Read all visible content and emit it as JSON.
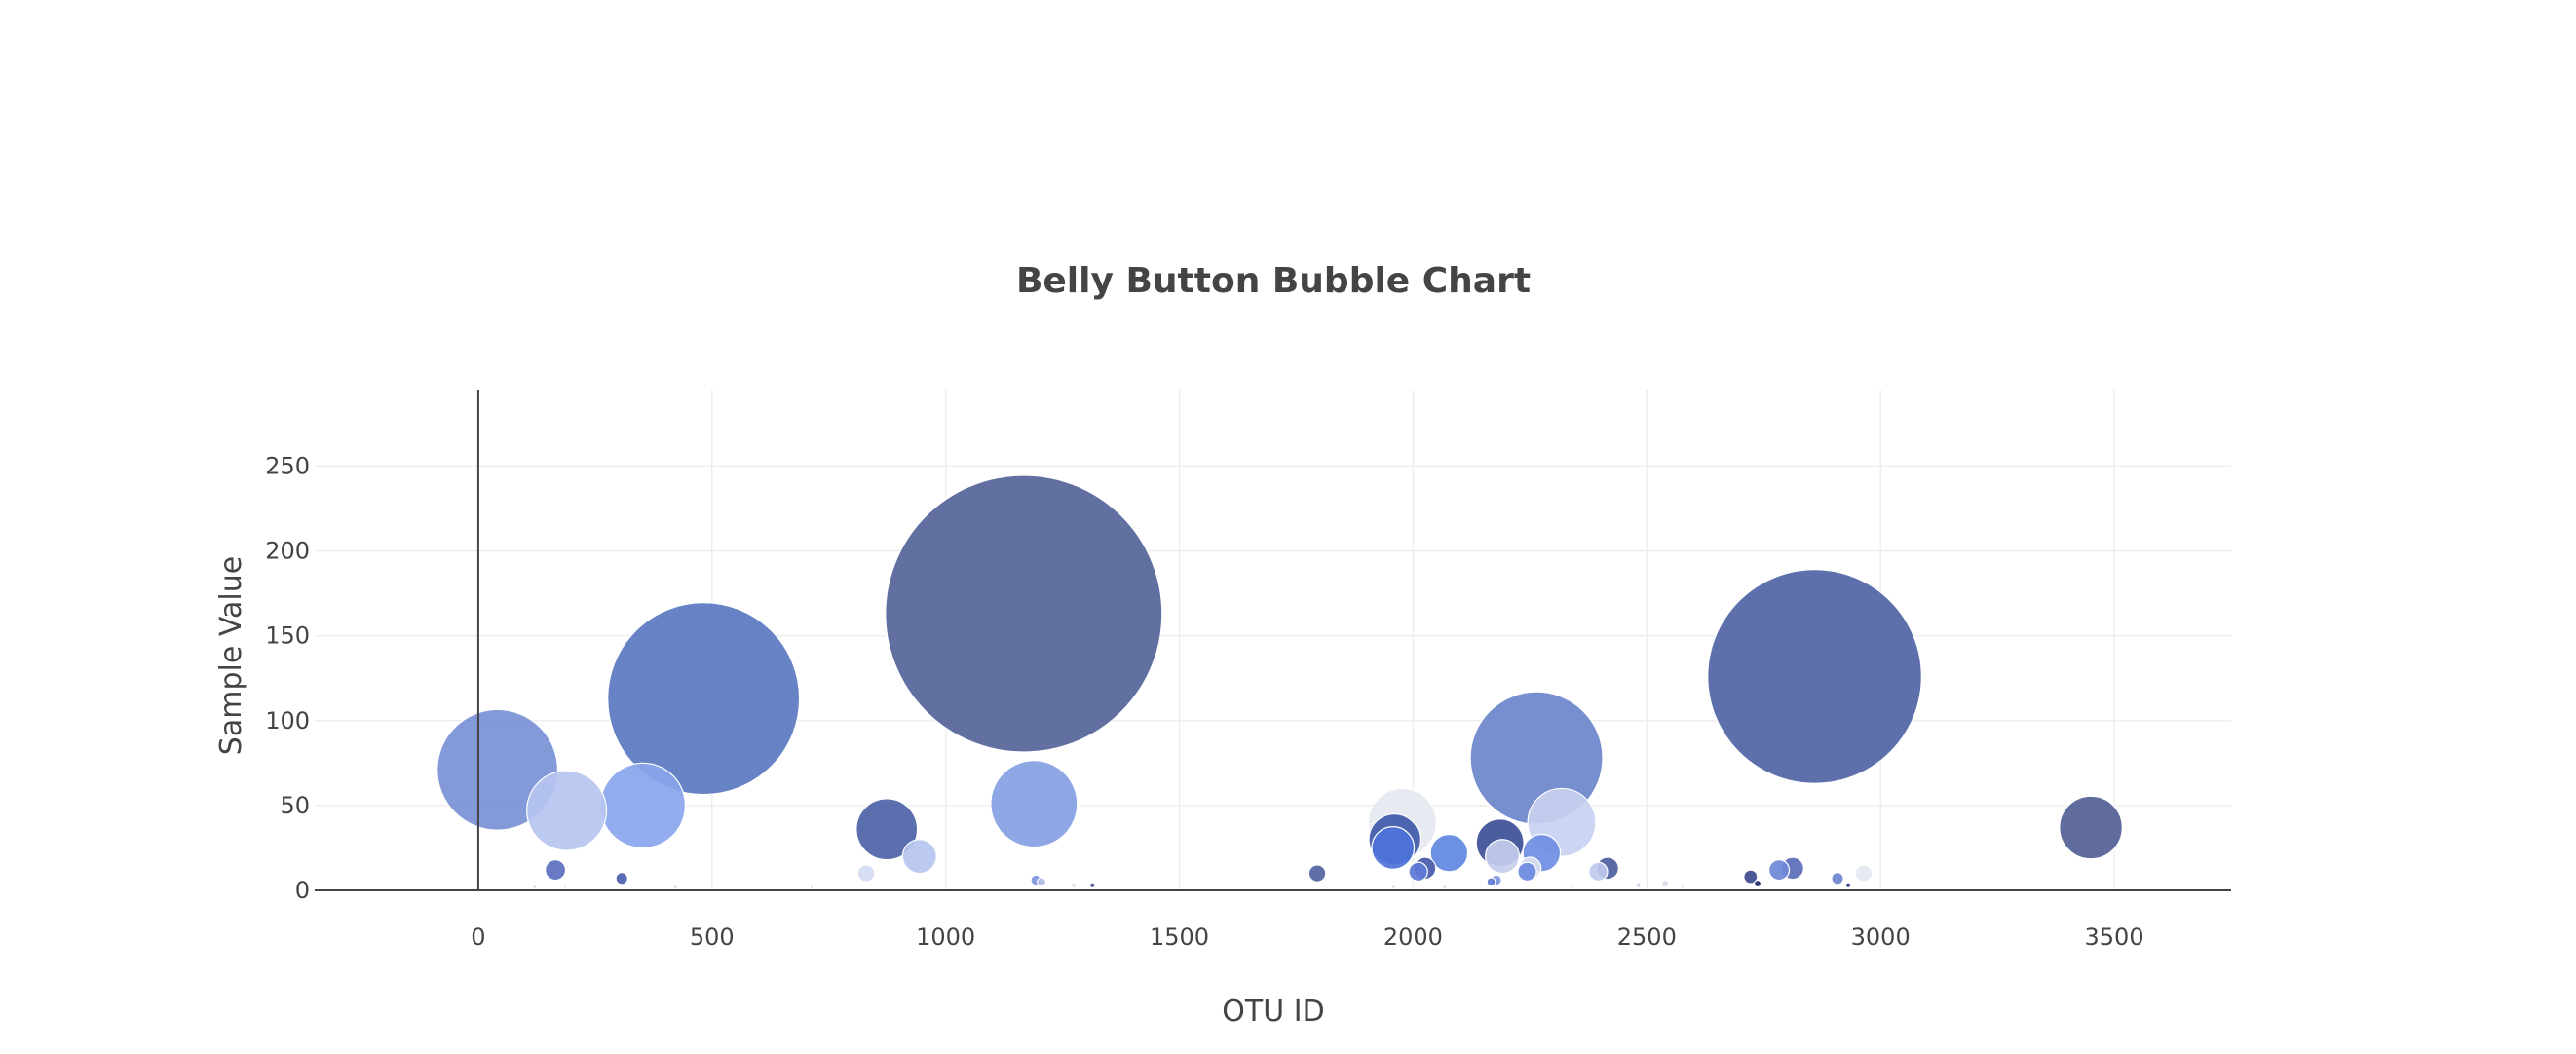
{
  "chart_data": {
    "type": "scatter",
    "title": "Belly Button Bubble Chart",
    "xlabel": "OTU ID",
    "ylabel": "Sample Value",
    "xlim": [
      -350,
      3750
    ],
    "ylim": [
      0,
      295
    ],
    "x_ticks": [
      0,
      500,
      1000,
      1500,
      2000,
      2500,
      3000,
      3500
    ],
    "y_ticks": [
      0,
      50,
      100,
      150,
      200,
      250
    ],
    "grid": true,
    "legend": "none",
    "colorscale": [
      "#ebedf2",
      "#bccbf2",
      "#8ba6eb",
      "#5d85de",
      "#4565c8",
      "#546ba8",
      "#38479e",
      "#1f2a66"
    ],
    "points": [
      {
        "x": 1167,
        "y": 163,
        "color": "#546399"
      },
      {
        "x": 2859,
        "y": 126,
        "color": "#4f64a5"
      },
      {
        "x": 482,
        "y": 113,
        "color": "#5b78c0"
      },
      {
        "x": 2264,
        "y": 78,
        "color": "#6b85cb"
      },
      {
        "x": 41,
        "y": 71,
        "color": "#7890d5"
      },
      {
        "x": 1189,
        "y": 51,
        "color": "#85a0e3"
      },
      {
        "x": 352,
        "y": 50,
        "color": "#8aa5ec"
      },
      {
        "x": 189,
        "y": 47,
        "color": "#b6c4f0"
      },
      {
        "x": 2318,
        "y": 40,
        "color": "#c8d1f0"
      },
      {
        "x": 1977,
        "y": 40,
        "color": "#e6e8f0"
      },
      {
        "x": 3450,
        "y": 37,
        "color": "#525f96"
      },
      {
        "x": 874,
        "y": 36,
        "color": "#4d62a6"
      },
      {
        "x": 1960,
        "y": 30,
        "color": "#3f58aa"
      },
      {
        "x": 2186,
        "y": 28,
        "color": "#3d4f97"
      },
      {
        "x": 1957,
        "y": 25,
        "color": "#4d72d8"
      },
      {
        "x": 2077,
        "y": 22,
        "color": "#5f88e0"
      },
      {
        "x": 2275,
        "y": 22,
        "color": "#6f8ee3"
      },
      {
        "x": 2191,
        "y": 20,
        "color": "#c4cdec"
      },
      {
        "x": 944,
        "y": 20,
        "color": "#b6c6f0"
      },
      {
        "x": 2416,
        "y": 13,
        "color": "#4d5e9e"
      },
      {
        "x": 2250,
        "y": 13,
        "color": "#d9def0"
      },
      {
        "x": 2812,
        "y": 13,
        "color": "#5a6cb8"
      },
      {
        "x": 2025,
        "y": 13,
        "color": "#4858a8"
      },
      {
        "x": 165,
        "y": 12,
        "color": "#5b6fc1"
      },
      {
        "x": 2783,
        "y": 12,
        "color": "#6e88d8"
      },
      {
        "x": 2011,
        "y": 11,
        "color": "#5c79d6"
      },
      {
        "x": 2396,
        "y": 11,
        "color": "#c0cbee"
      },
      {
        "x": 2244,
        "y": 11,
        "color": "#6c8ae0"
      },
      {
        "x": 1795,
        "y": 10,
        "color": "#52639e"
      },
      {
        "x": 830,
        "y": 10,
        "color": "#d4dbf3"
      },
      {
        "x": 2964,
        "y": 10,
        "color": "#e4e7f1"
      },
      {
        "x": 2722,
        "y": 8,
        "color": "#3d4d8f"
      },
      {
        "x": 2908,
        "y": 7,
        "color": "#6f84cf"
      },
      {
        "x": 307,
        "y": 7,
        "color": "#4d60b0"
      },
      {
        "x": 1193,
        "y": 6,
        "color": "#7d96e0"
      },
      {
        "x": 2178,
        "y": 6,
        "color": "#7a92dc"
      },
      {
        "x": 2167,
        "y": 5,
        "color": "#5f7bd4"
      },
      {
        "x": 1205,
        "y": 5,
        "color": "#aebde8"
      },
      {
        "x": 2539,
        "y": 4,
        "color": "#d4d9eb"
      },
      {
        "x": 2737,
        "y": 4,
        "color": "#1f2a66"
      },
      {
        "x": 2931,
        "y": 3,
        "color": "#2c3b8a"
      },
      {
        "x": 1314,
        "y": 3,
        "color": "#3f4d8e"
      },
      {
        "x": 1274,
        "y": 3,
        "color": "#d8ddee"
      },
      {
        "x": 2482,
        "y": 3,
        "color": "#cdd4ec"
      },
      {
        "x": 121,
        "y": 2,
        "color": "#c9d1ee"
      },
      {
        "x": 185,
        "y": 2,
        "color": "#e0e3ef"
      },
      {
        "x": 422,
        "y": 2,
        "color": "#c5cdea"
      },
      {
        "x": 713,
        "y": 2,
        "color": "#d8dcee"
      },
      {
        "x": 2067,
        "y": 2,
        "color": "#c9d1ee"
      },
      {
        "x": 1958,
        "y": 2,
        "color": "#c8d0ee"
      },
      {
        "x": 2340,
        "y": 2,
        "color": "#c5cdea"
      },
      {
        "x": 2576,
        "y": 2,
        "color": "#d8dcee"
      }
    ]
  }
}
